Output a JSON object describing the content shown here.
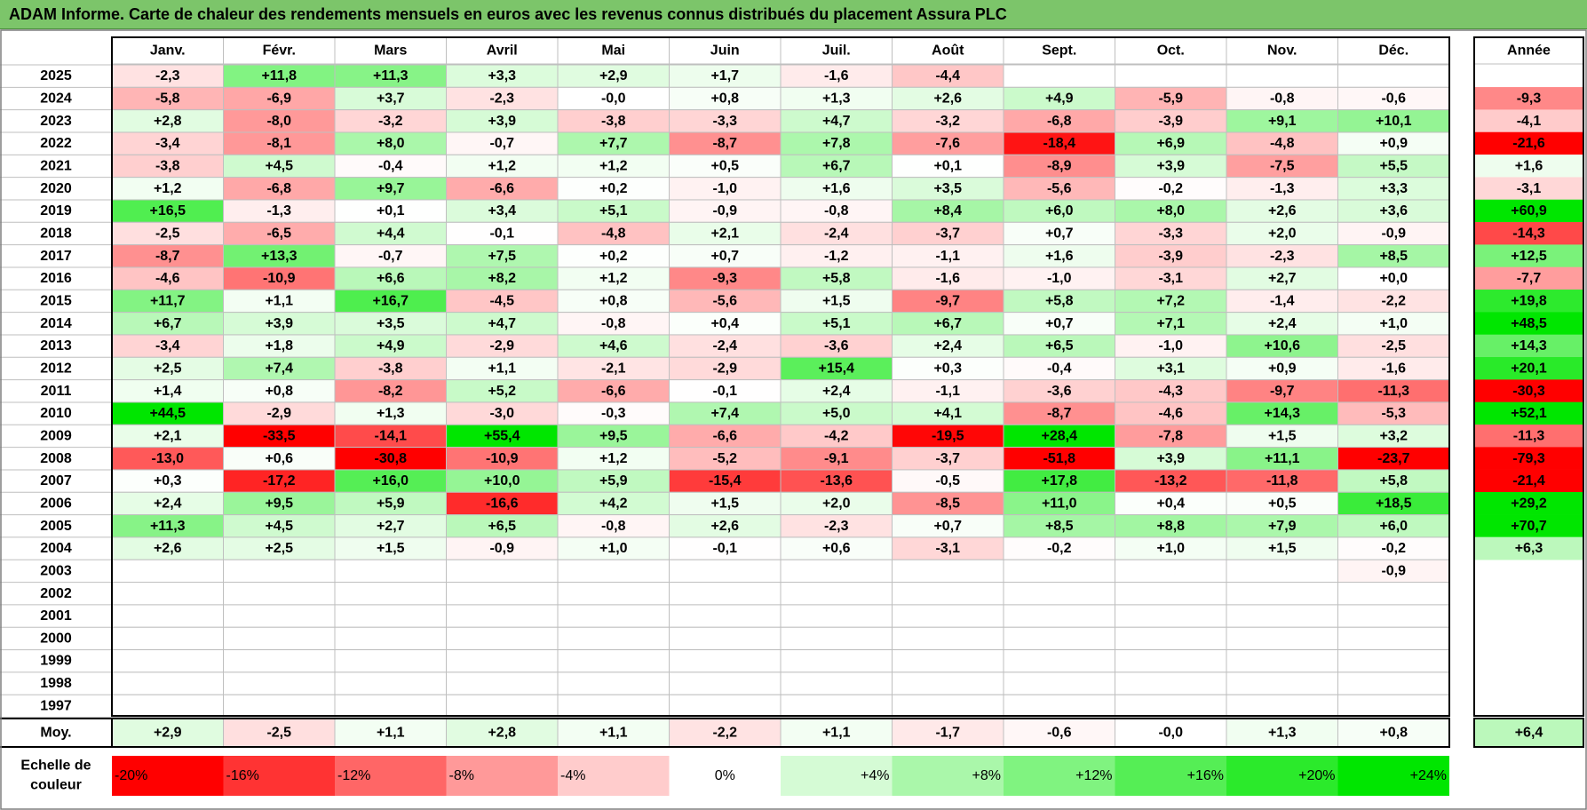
{
  "title": "ADAM Informe. Carte de chaleur des rendements mensuels en euros avec les revenus connus distribués du placement Assura PLC",
  "colors": {
    "title_bar": "#7cc56a",
    "negative_max": "#ff0000",
    "positive_max": "#00e600",
    "neutral": "#ffffff",
    "grid": "#bfbfbf",
    "frame": "#000000"
  },
  "chart_data": {
    "type": "heatmap",
    "title": "ADAM Informe. Carte de chaleur des rendements mensuels en euros avec les revenus connus distribués du placement Assura PLC",
    "columns": [
      "Janv.",
      "Févr.",
      "Mars",
      "Avril",
      "Mai",
      "Juin",
      "Juil.",
      "Août",
      "Sept.",
      "Oct.",
      "Nov.",
      "Déc."
    ],
    "year_column_label": "Année",
    "rows": [
      {
        "label": "2025",
        "values": [
          "-2,3",
          "+11,8",
          "+11,3",
          "+3,3",
          "+2,9",
          "+1,7",
          "-1,6",
          "-4,4",
          "",
          "",
          "",
          ""
        ],
        "year": ""
      },
      {
        "label": "2024",
        "values": [
          "-5,8",
          "-6,9",
          "+3,7",
          "-2,3",
          "-0,0",
          "+0,8",
          "+1,3",
          "+2,6",
          "+4,9",
          "-5,9",
          "-0,8",
          "-0,6"
        ],
        "year": "-9,3"
      },
      {
        "label": "2023",
        "values": [
          "+2,8",
          "-8,0",
          "-3,2",
          "+3,9",
          "-3,8",
          "-3,3",
          "+4,7",
          "-3,2",
          "-6,8",
          "-3,9",
          "+9,1",
          "+10,1"
        ],
        "year": "-4,1"
      },
      {
        "label": "2022",
        "values": [
          "-3,4",
          "-8,1",
          "+8,0",
          "-0,7",
          "+7,7",
          "-8,7",
          "+7,8",
          "-7,6",
          "-18,4",
          "+6,9",
          "-4,8",
          "+0,9"
        ],
        "year": "-21,6"
      },
      {
        "label": "2021",
        "values": [
          "-3,8",
          "+4,5",
          "-0,4",
          "+1,2",
          "+1,2",
          "+0,5",
          "+6,7",
          "+0,1",
          "-8,9",
          "+3,9",
          "-7,5",
          "+5,5"
        ],
        "year": "+1,6"
      },
      {
        "label": "2020",
        "values": [
          "+1,2",
          "-6,8",
          "+9,7",
          "-6,6",
          "+0,2",
          "-1,0",
          "+1,6",
          "+3,5",
          "-5,6",
          "-0,2",
          "-1,3",
          "+3,3"
        ],
        "year": "-3,1"
      },
      {
        "label": "2019",
        "values": [
          "+16,5",
          "-1,3",
          "+0,1",
          "+3,4",
          "+5,1",
          "-0,9",
          "-0,8",
          "+8,4",
          "+6,0",
          "+8,0",
          "+2,6",
          "+3,6"
        ],
        "year": "+60,9"
      },
      {
        "label": "2018",
        "values": [
          "-2,5",
          "-6,5",
          "+4,4",
          "-0,1",
          "-4,8",
          "+2,1",
          "-2,4",
          "-3,7",
          "+0,7",
          "-3,3",
          "+2,0",
          "-0,9"
        ],
        "year": "-14,3"
      },
      {
        "label": "2017",
        "values": [
          "-8,7",
          "+13,3",
          "-0,7",
          "+7,5",
          "+0,2",
          "+0,7",
          "-1,2",
          "-1,1",
          "+1,6",
          "-3,9",
          "-2,3",
          "+8,5"
        ],
        "year": "+12,5"
      },
      {
        "label": "2016",
        "values": [
          "-4,6",
          "-10,9",
          "+6,6",
          "+8,2",
          "+1,2",
          "-9,3",
          "+5,8",
          "-1,6",
          "-1,0",
          "-3,1",
          "+2,7",
          "+0,0"
        ],
        "year": "-7,7"
      },
      {
        "label": "2015",
        "values": [
          "+11,7",
          "+1,1",
          "+16,7",
          "-4,5",
          "+0,8",
          "-5,6",
          "+1,5",
          "-9,7",
          "+5,8",
          "+7,2",
          "-1,4",
          "-2,2"
        ],
        "year": "+19,8"
      },
      {
        "label": "2014",
        "values": [
          "+6,7",
          "+3,9",
          "+3,5",
          "+4,7",
          "-0,8",
          "+0,4",
          "+5,1",
          "+6,7",
          "+0,7",
          "+7,1",
          "+2,4",
          "+1,0"
        ],
        "year": "+48,5"
      },
      {
        "label": "2013",
        "values": [
          "-3,4",
          "+1,8",
          "+4,9",
          "-2,9",
          "+4,6",
          "-2,4",
          "-3,6",
          "+2,4",
          "+6,5",
          "-1,0",
          "+10,6",
          "-2,5"
        ],
        "year": "+14,3"
      },
      {
        "label": "2012",
        "values": [
          "+2,5",
          "+7,4",
          "-3,8",
          "+1,1",
          "-2,1",
          "-2,9",
          "+15,4",
          "+0,3",
          "-0,4",
          "+3,1",
          "+0,9",
          "-1,6"
        ],
        "year": "+20,1"
      },
      {
        "label": "2011",
        "values": [
          "+1,4",
          "+0,8",
          "-8,2",
          "+5,2",
          "-6,6",
          "-0,1",
          "+2,4",
          "-1,1",
          "-3,6",
          "-4,3",
          "-9,7",
          "-11,3"
        ],
        "year": "-30,3"
      },
      {
        "label": "2010",
        "values": [
          "+44,5",
          "-2,9",
          "+1,3",
          "-3,0",
          "-0,3",
          "+7,4",
          "+5,0",
          "+4,1",
          "-8,7",
          "-4,6",
          "+14,3",
          "-5,3"
        ],
        "year": "+52,1"
      },
      {
        "label": "2009",
        "values": [
          "+2,1",
          "-33,5",
          "-14,1",
          "+55,4",
          "+9,5",
          "-6,6",
          "-4,2",
          "-19,5",
          "+28,4",
          "-7,8",
          "+1,5",
          "+3,2"
        ],
        "year": "-11,3"
      },
      {
        "label": "2008",
        "values": [
          "-13,0",
          "+0,6",
          "-30,8",
          "-10,9",
          "+1,2",
          "-5,2",
          "-9,1",
          "-3,7",
          "-51,8",
          "+3,9",
          "+11,1",
          "-23,7"
        ],
        "year": "-79,3"
      },
      {
        "label": "2007",
        "values": [
          "+0,3",
          "-17,2",
          "+16,0",
          "+10,0",
          "+5,9",
          "-15,4",
          "-13,6",
          "-0,5",
          "+17,8",
          "-13,2",
          "-11,8",
          "+5,8"
        ],
        "year": "-21,4"
      },
      {
        "label": "2006",
        "values": [
          "+2,4",
          "+9,5",
          "+5,9",
          "-16,6",
          "+4,2",
          "+1,5",
          "+2,0",
          "-8,5",
          "+11,0",
          "+0,4",
          "+0,5",
          "+18,5"
        ],
        "year": "+29,2"
      },
      {
        "label": "2005",
        "values": [
          "+11,3",
          "+4,5",
          "+2,7",
          "+6,5",
          "-0,8",
          "+2,6",
          "-2,3",
          "+0,7",
          "+8,5",
          "+8,8",
          "+7,9",
          "+6,0"
        ],
        "year": "+70,7"
      },
      {
        "label": "2004",
        "values": [
          "+2,6",
          "+2,5",
          "+1,5",
          "-0,9",
          "+1,0",
          "-0,1",
          "+0,6",
          "-3,1",
          "-0,2",
          "+1,0",
          "+1,5",
          "-0,2"
        ],
        "year": "+6,3"
      },
      {
        "label": "2003",
        "values": [
          "",
          "",
          "",
          "",
          "",
          "",
          "",
          "",
          "",
          "",
          "",
          "-0,9"
        ],
        "year": ""
      },
      {
        "label": "2002",
        "values": [
          "",
          "",
          "",
          "",
          "",
          "",
          "",
          "",
          "",
          "",
          "",
          ""
        ],
        "year": ""
      },
      {
        "label": "2001",
        "values": [
          "",
          "",
          "",
          "",
          "",
          "",
          "",
          "",
          "",
          "",
          "",
          ""
        ],
        "year": ""
      },
      {
        "label": "2000",
        "values": [
          "",
          "",
          "",
          "",
          "",
          "",
          "",
          "",
          "",
          "",
          "",
          ""
        ],
        "year": ""
      },
      {
        "label": "1999",
        "values": [
          "",
          "",
          "",
          "",
          "",
          "",
          "",
          "",
          "",
          "",
          "",
          ""
        ],
        "year": ""
      },
      {
        "label": "1998",
        "values": [
          "",
          "",
          "",
          "",
          "",
          "",
          "",
          "",
          "",
          "",
          "",
          ""
        ],
        "year": ""
      },
      {
        "label": "1997",
        "values": [
          "",
          "",
          "",
          "",
          "",
          "",
          "",
          "",
          "",
          "",
          "",
          ""
        ],
        "year": ""
      }
    ],
    "average_row": {
      "label": "Moy.",
      "values": [
        "+2,9",
        "-2,5",
        "+1,1",
        "+2,8",
        "+1,1",
        "-2,2",
        "+1,1",
        "-1,7",
        "-0,6",
        "-0,0",
        "+1,3",
        "+0,8"
      ],
      "year": "+6,4"
    },
    "color_scale": {
      "label_lines": [
        "Echelle de",
        "couleur"
      ],
      "steps": [
        "-20%",
        "-16%",
        "-12%",
        "-8%",
        "-4%",
        "0%",
        "+4%",
        "+8%",
        "+12%",
        "+16%",
        "+20%",
        "+24%"
      ],
      "step_values": [
        -20,
        -16,
        -12,
        -8,
        -4,
        0,
        4,
        8,
        12,
        16,
        20,
        24
      ]
    }
  }
}
